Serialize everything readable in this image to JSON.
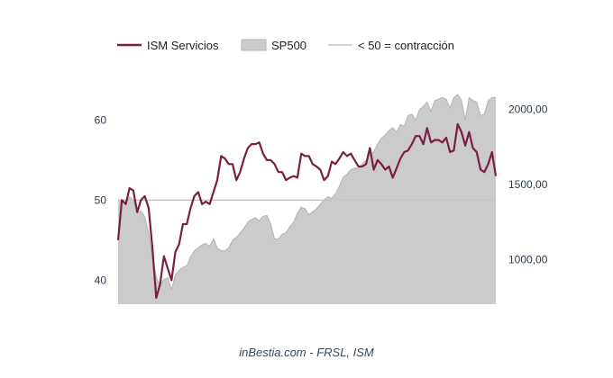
{
  "chart_data": {
    "type": "line",
    "title": "",
    "caption": "inBestia.com - FRSL, ISM",
    "legend_position": "top",
    "grid": false,
    "colors": {
      "ism": "#7a1e45",
      "sp500_fill": "#cbcbcb",
      "sp500_stroke": "#b3b3b3",
      "threshold": "#c4c4c4"
    },
    "x_range": [
      0,
      99
    ],
    "left_axis": {
      "ylim": [
        37,
        66
      ],
      "ticks": [
        40,
        50,
        60
      ],
      "tick_labels": [
        "40",
        "50",
        "60"
      ]
    },
    "right_axis": {
      "ylim": [
        705,
        2250
      ],
      "ticks": [
        1000,
        1500,
        2000
      ],
      "tick_labels": [
        "1000,00",
        "1500,00",
        "2000,00"
      ]
    },
    "threshold": {
      "name": "< 50 = contracción",
      "value": 50
    },
    "series": [
      {
        "name": "ISM Servicios",
        "axis": "left",
        "x": [
          0,
          1,
          2,
          3,
          4,
          5,
          6,
          7,
          8,
          9,
          10,
          11,
          12,
          13,
          14,
          15,
          16,
          17,
          18,
          19,
          20,
          21,
          22,
          23,
          24,
          25,
          26,
          27,
          28,
          29,
          30,
          31,
          32,
          33,
          34,
          35,
          36,
          37,
          38,
          39,
          40,
          41,
          42,
          43,
          44,
          45,
          46,
          47,
          48,
          49,
          50,
          51,
          52,
          53,
          54,
          55,
          56,
          57,
          58,
          59,
          60,
          61,
          62,
          63,
          64,
          65,
          66,
          67,
          68,
          69,
          70,
          71,
          72,
          73,
          74,
          75,
          76,
          77,
          78,
          79,
          80,
          81,
          82,
          83,
          84,
          85,
          86,
          87,
          88,
          89,
          90,
          91,
          92,
          93,
          94,
          95,
          96,
          97,
          98,
          99
        ],
        "values": [
          45.0,
          50.0,
          49.5,
          51.5,
          51.2,
          48.5,
          50.0,
          50.5,
          49.0,
          44.0,
          37.8,
          39.5,
          43.0,
          41.5,
          40.0,
          43.5,
          44.5,
          47.0,
          47.0,
          49.0,
          50.5,
          51.0,
          49.5,
          49.8,
          49.5,
          51.0,
          52.5,
          55.5,
          55.2,
          54.5,
          54.5,
          52.5,
          53.5,
          55.2,
          56.5,
          57.0,
          57.0,
          57.2,
          55.8,
          55.0,
          55.0,
          54.5,
          53.5,
          53.5,
          52.5,
          52.8,
          53.0,
          52.8,
          55.8,
          55.5,
          55.5,
          54.5,
          54.2,
          53.8,
          52.5,
          53.0,
          54.8,
          54.5,
          55.2,
          56.0,
          55.5,
          55.8,
          55.0,
          54.2,
          54.2,
          54.5,
          56.5,
          53.8,
          55.0,
          54.5,
          53.8,
          54.2,
          52.8,
          54.0,
          55.2,
          56.0,
          56.2,
          57.0,
          58.0,
          58.0,
          57.0,
          59.0,
          57.2,
          57.5,
          57.5,
          57.2,
          57.8,
          56.0,
          56.2,
          59.5,
          58.5,
          56.8,
          58.5,
          56.5,
          56.0,
          53.8,
          53.5,
          54.5,
          56.0,
          53.0
        ]
      },
      {
        "name": "SP500",
        "axis": "right",
        "x": [
          0,
          1,
          2,
          3,
          4,
          5,
          6,
          7,
          8,
          9,
          10,
          11,
          12,
          13,
          14,
          15,
          16,
          17,
          18,
          19,
          20,
          21,
          22,
          23,
          24,
          25,
          26,
          27,
          28,
          29,
          30,
          31,
          32,
          33,
          34,
          35,
          36,
          37,
          38,
          39,
          40,
          41,
          42,
          43,
          44,
          45,
          46,
          47,
          48,
          49,
          50,
          51,
          52,
          53,
          54,
          55,
          56,
          57,
          58,
          59,
          60,
          61,
          62,
          63,
          64,
          65,
          66,
          67,
          68,
          69,
          70,
          71,
          72,
          73,
          74,
          75,
          76,
          77,
          78,
          79,
          80,
          81,
          82,
          83,
          84,
          85,
          86,
          87,
          88,
          89,
          90,
          91,
          92,
          93,
          94,
          95,
          96,
          97,
          98,
          99
        ],
        "values": [
          1400,
          1395,
          1375,
          1420,
          1395,
          1320,
          1325,
          1285,
          1180,
          1010,
          885,
          830,
          870,
          880,
          800,
          900,
          930,
          950,
          960,
          1020,
          1060,
          1080,
          1100,
          1110,
          1090,
          1140,
          1080,
          1060,
          1060,
          1080,
          1130,
          1150,
          1180,
          1210,
          1250,
          1270,
          1280,
          1260,
          1290,
          1295,
          1240,
          1140,
          1140,
          1170,
          1180,
          1220,
          1250,
          1310,
          1350,
          1340,
          1300,
          1320,
          1340,
          1370,
          1400,
          1420,
          1410,
          1440,
          1490,
          1550,
          1570,
          1600,
          1610,
          1610,
          1640,
          1660,
          1700,
          1720,
          1770,
          1810,
          1830,
          1860,
          1880,
          1850,
          1900,
          1890,
          1960,
          1970,
          1930,
          2000,
          2020,
          2050,
          1990,
          2060,
          2070,
          2080,
          2070,
          2010,
          2080,
          2100,
          2060,
          1930,
          2080,
          2060,
          2050,
          1960,
          1970,
          2060,
          2080,
          2080
        ]
      }
    ]
  }
}
